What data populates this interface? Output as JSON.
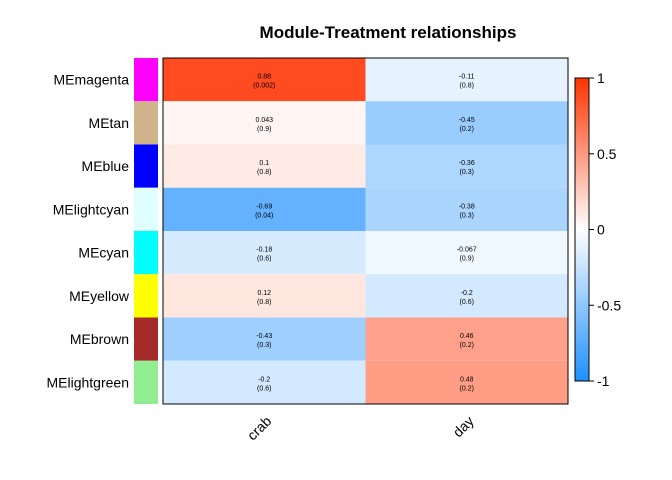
{
  "chart_data": {
    "type": "heatmap",
    "title": "Module-Treatment relationships",
    "rows": [
      {
        "label": "MEmagenta",
        "color": "#FF00FF"
      },
      {
        "label": "MEtan",
        "color": "#D2B48C"
      },
      {
        "label": "MEblue",
        "color": "#0000FF"
      },
      {
        "label": "MElightcyan",
        "color": "#E0FFFF"
      },
      {
        "label": "MEcyan",
        "color": "#00FFFF"
      },
      {
        "label": "MEyellow",
        "color": "#FFFF00"
      },
      {
        "label": "MEbrown",
        "color": "#A52A2A"
      },
      {
        "label": "MElightgreen",
        "color": "#90EE90"
      }
    ],
    "columns": [
      "crab",
      "day"
    ],
    "values": [
      [
        0.88,
        -0.11
      ],
      [
        0.043,
        -0.45
      ],
      [
        0.1,
        -0.36
      ],
      [
        -0.69,
        -0.38
      ],
      [
        -0.18,
        -0.067
      ],
      [
        0.12,
        -0.2
      ],
      [
        -0.43,
        0.46
      ],
      [
        -0.2,
        0.48
      ]
    ],
    "cell_text": [
      [
        {
          "r": "0.88",
          "p": "(0.002)"
        },
        {
          "r": "-0.11",
          "p": "(0.8)"
        }
      ],
      [
        {
          "r": "0.043",
          "p": "(0.9)"
        },
        {
          "r": "-0.45",
          "p": "(0.2)"
        }
      ],
      [
        {
          "r": "0.1",
          "p": "(0.8)"
        },
        {
          "r": "-0.36",
          "p": "(0.3)"
        }
      ],
      [
        {
          "r": "-0.69",
          "p": "(0.04)"
        },
        {
          "r": "-0.38",
          "p": "(0.3)"
        }
      ],
      [
        {
          "r": "-0.18",
          "p": "(0.6)"
        },
        {
          "r": "-0.067",
          "p": "(0.9)"
        }
      ],
      [
        {
          "r": "0.12",
          "p": "(0.8)"
        },
        {
          "r": "-0.2",
          "p": "(0.6)"
        }
      ],
      [
        {
          "r": "-0.43",
          "p": "(0.3)"
        },
        {
          "r": "0.46",
          "p": "(0.2)"
        }
      ],
      [
        {
          "r": "-0.2",
          "p": "(0.6)"
        },
        {
          "r": "0.48",
          "p": "(0.2)"
        }
      ]
    ],
    "color_scale": {
      "min": -1,
      "max": 1,
      "low_color": "#1E90FF",
      "mid_color": "#FFFFFF",
      "high_color": "#FF3300",
      "ticks": [
        {
          "value": 1,
          "label": "1"
        },
        {
          "value": 0.5,
          "label": "0.5"
        },
        {
          "value": 0,
          "label": "0"
        },
        {
          "value": -0.5,
          "label": "-0.5"
        },
        {
          "value": -1,
          "label": "-1"
        }
      ]
    }
  }
}
